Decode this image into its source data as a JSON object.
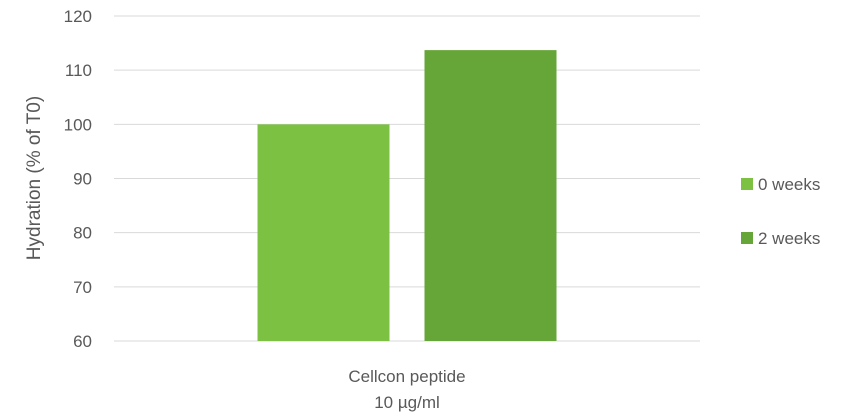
{
  "chart_data": {
    "type": "bar",
    "categories": [
      "Cellcon peptide"
    ],
    "category_sublabels": [
      "10 µg/ml"
    ],
    "series": [
      {
        "name": "0 weeks",
        "values": [
          100
        ],
        "color": "#7dc142"
      },
      {
        "name": "2 weeks",
        "values": [
          113.7
        ],
        "color": "#66a537"
      }
    ],
    "ylabel": "Hydration (% of T0)",
    "ylim": [
      60,
      120
    ],
    "yticks": [
      60,
      70,
      80,
      90,
      100,
      110,
      120
    ],
    "grid": true,
    "legend_position": "right",
    "gridline_color": "#d9d9d9"
  }
}
